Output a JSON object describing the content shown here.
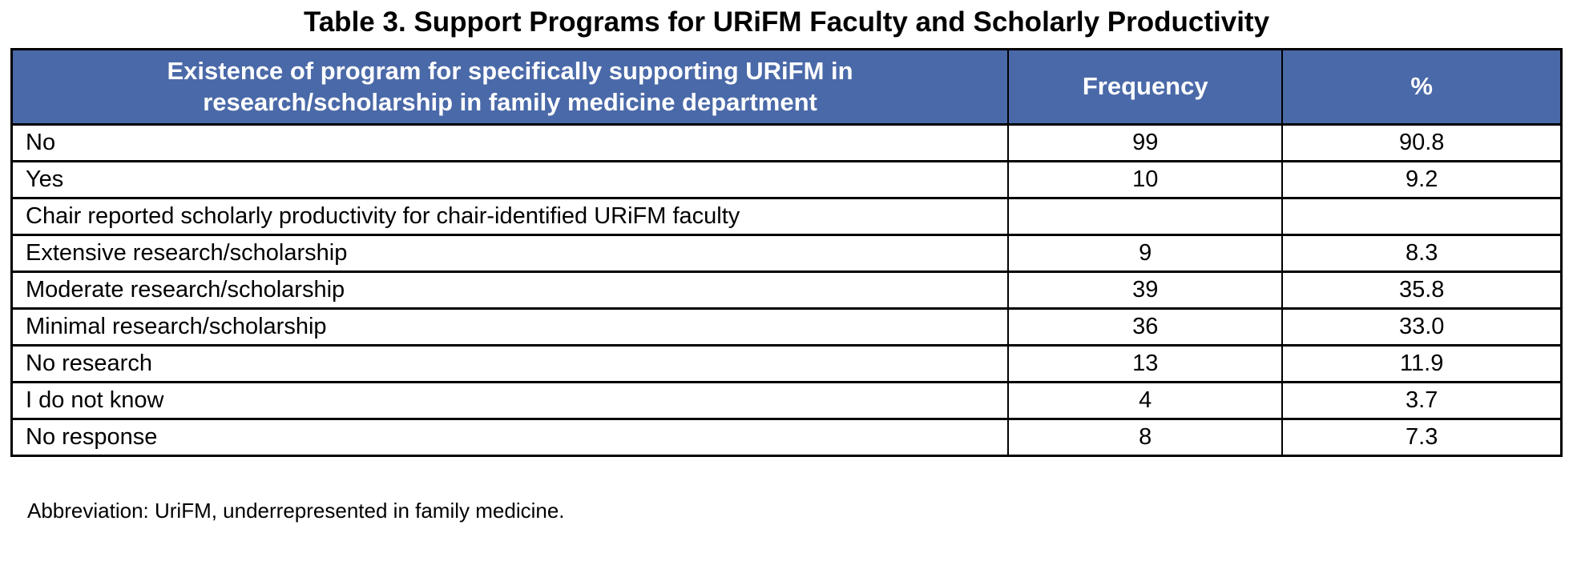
{
  "title": "Table 3. Support Programs for URiFM Faculty and Scholarly Productivity",
  "colors": {
    "header_bg": "#4A69A8",
    "header_text": "#FFFFFF",
    "border": "#000000",
    "background": "#FFFFFF"
  },
  "table": {
    "columns": {
      "label": "Existence of program for specifically supporting URiFM in\nresearch/scholarship in family medicine department",
      "frequency": "Frequency",
      "percent": "%"
    },
    "rows": [
      {
        "label": "No",
        "frequency": "99",
        "percent": "90.8"
      },
      {
        "label": "Yes",
        "frequency": "10",
        "percent": "9.2"
      },
      {
        "label": "Chair reported scholarly productivity for chair-identified URiFM faculty",
        "frequency": "",
        "percent": ""
      },
      {
        "label": "Extensive research/scholarship",
        "frequency": "9",
        "percent": "8.3"
      },
      {
        "label": "Moderate research/scholarship",
        "frequency": "39",
        "percent": "35.8"
      },
      {
        "label": "Minimal research/scholarship",
        "frequency": "36",
        "percent": "33.0"
      },
      {
        "label": "No research",
        "frequency": "13",
        "percent": "11.9"
      },
      {
        "label": "I do not know",
        "frequency": "4",
        "percent": "3.7"
      },
      {
        "label": "No response",
        "frequency": "8",
        "percent": "7.3"
      }
    ]
  },
  "footnote": "Abbreviation: UriFM, underrepresented in family medicine."
}
